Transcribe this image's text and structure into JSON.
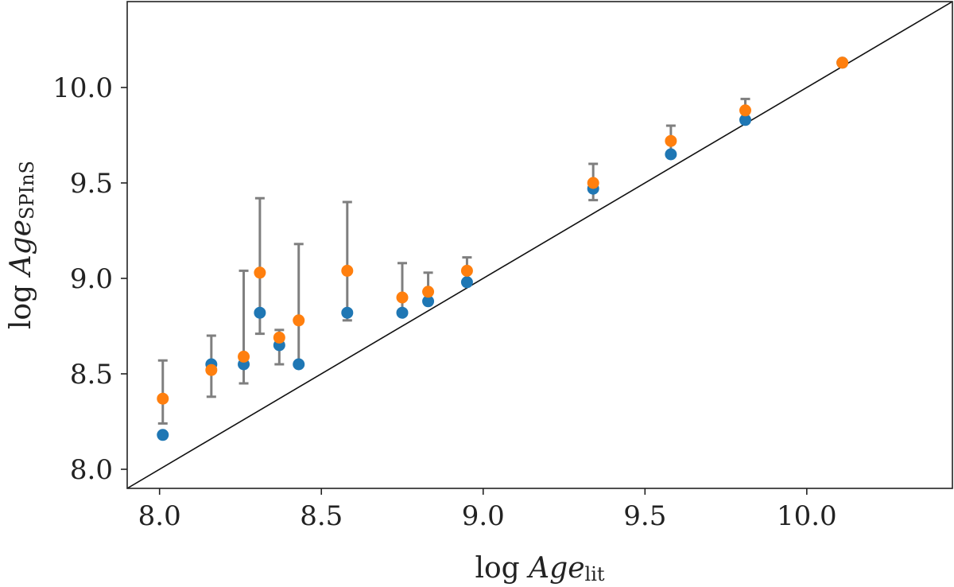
{
  "chart_data": {
    "type": "scatter",
    "title": "",
    "xlabel": "log Age_lit",
    "ylabel": "log Age_SPInS",
    "xlim": [
      7.9,
      10.45
    ],
    "ylim": [
      7.9,
      10.45
    ],
    "grid": false,
    "legend": "none",
    "x_ticks": [
      "8.0",
      "8.5",
      "9.0",
      "9.5",
      "10.0"
    ],
    "y_ticks": [
      "8.0",
      "8.5",
      "9.0",
      "9.5",
      "10.0"
    ],
    "reference_line": {
      "kind": "identity",
      "slope": 1,
      "intercept": 0
    },
    "series": [
      {
        "color": "#1f77b4",
        "points": [
          {
            "x": 8.01,
            "y": 8.18
          },
          {
            "x": 8.16,
            "y": 8.55
          },
          {
            "x": 8.26,
            "y": 8.55
          },
          {
            "x": 8.31,
            "y": 8.82
          },
          {
            "x": 8.37,
            "y": 8.65
          },
          {
            "x": 8.43,
            "y": 8.55
          },
          {
            "x": 8.58,
            "y": 8.82
          },
          {
            "x": 8.75,
            "y": 8.82
          },
          {
            "x": 8.83,
            "y": 8.88
          },
          {
            "x": 8.95,
            "y": 8.98
          },
          {
            "x": 9.34,
            "y": 9.47
          },
          {
            "x": 9.58,
            "y": 9.65
          },
          {
            "x": 9.81,
            "y": 9.83
          },
          {
            "x": 10.11,
            "y": 10.13
          }
        ]
      },
      {
        "color": "#ff7f0e",
        "points": [
          {
            "x": 8.01,
            "y": 8.37,
            "lo": 8.24,
            "hi": 8.57
          },
          {
            "x": 8.16,
            "y": 8.52,
            "lo": 8.38,
            "hi": 8.7
          },
          {
            "x": 8.26,
            "y": 8.59,
            "lo": 8.45,
            "hi": 9.04
          },
          {
            "x": 8.31,
            "y": 9.03,
            "lo": 8.71,
            "hi": 9.42
          },
          {
            "x": 8.37,
            "y": 8.69,
            "lo": 8.55,
            "hi": 8.73
          },
          {
            "x": 8.43,
            "y": 8.78,
            "lo": 8.55,
            "hi": 9.18
          },
          {
            "x": 8.58,
            "y": 9.04,
            "lo": 8.78,
            "hi": 9.4
          },
          {
            "x": 8.75,
            "y": 8.9,
            "lo": 8.82,
            "hi": 9.08
          },
          {
            "x": 8.83,
            "y": 8.93,
            "lo": 8.87,
            "hi": 9.03
          },
          {
            "x": 8.95,
            "y": 9.04,
            "lo": 8.98,
            "hi": 9.11
          },
          {
            "x": 9.34,
            "y": 9.5,
            "lo": 9.41,
            "hi": 9.6
          },
          {
            "x": 9.58,
            "y": 9.72,
            "lo": 9.65,
            "hi": 9.8
          },
          {
            "x": 9.81,
            "y": 9.88,
            "lo": 9.83,
            "hi": 9.94
          },
          {
            "x": 10.11,
            "y": 10.13,
            "lo": 10.13,
            "hi": 10.14
          }
        ]
      }
    ]
  }
}
